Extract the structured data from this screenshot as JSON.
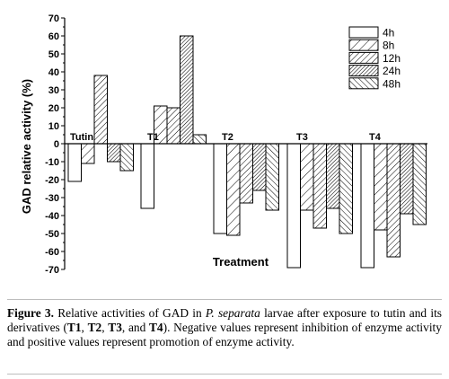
{
  "chart_data": {
    "type": "bar",
    "xlabel": "Treatment",
    "ylabel": "GAD relative activity (%)",
    "ylim": [
      -75,
      70
    ],
    "yticks": [
      -70,
      -60,
      -50,
      -40,
      -30,
      -20,
      -10,
      0,
      10,
      20,
      30,
      40,
      50,
      60,
      70
    ],
    "grid": false,
    "legend_position": "top-right",
    "categories": [
      "Tutin",
      "T1",
      "T2",
      "T3",
      "T4"
    ],
    "series": [
      {
        "name": "4h",
        "pattern": "none",
        "values": [
          -21,
          -36,
          -50,
          -69,
          -69
        ]
      },
      {
        "name": "8h",
        "pattern": "diag-sparse",
        "values": [
          -11,
          21,
          -51,
          -37,
          -48
        ]
      },
      {
        "name": "12h",
        "pattern": "diag-medium",
        "values": [
          38,
          20,
          -33,
          -47,
          -63
        ]
      },
      {
        "name": "24h",
        "pattern": "diag-dense",
        "values": [
          -10,
          60,
          -26,
          -36,
          -39
        ]
      },
      {
        "name": "48h",
        "pattern": "diag-back",
        "values": [
          -15,
          5,
          -37,
          -50,
          -45
        ]
      }
    ]
  },
  "caption": {
    "label": "Figure 3.",
    "parts": [
      {
        "t": " Relative activities of GAD in ",
        "s": "n"
      },
      {
        "t": "P. separata",
        "s": "i"
      },
      {
        "t": " larvae after exposure to tutin and its derivatives (",
        "s": "n"
      },
      {
        "t": "T1",
        "s": "b"
      },
      {
        "t": ", ",
        "s": "n"
      },
      {
        "t": "T2",
        "s": "b"
      },
      {
        "t": ", ",
        "s": "n"
      },
      {
        "t": "T3",
        "s": "b"
      },
      {
        "t": ", and ",
        "s": "n"
      },
      {
        "t": "T4",
        "s": "b"
      },
      {
        "t": "). Negative values represent inhibition of enzyme activity and positive values represent promotion of enzyme activity.",
        "s": "n"
      }
    ]
  }
}
